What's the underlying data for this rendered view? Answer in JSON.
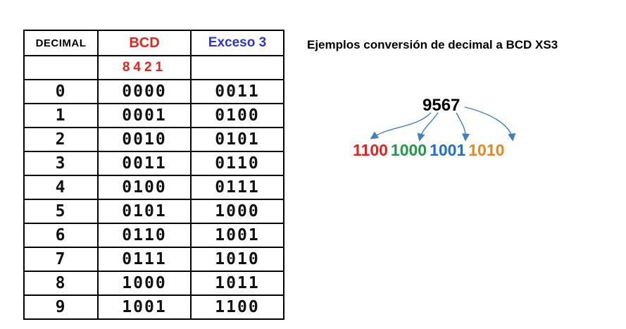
{
  "table": {
    "headers": {
      "decimal": "DECIMAL",
      "bcd": "BCD",
      "excess3": "Exceso 3"
    },
    "bcd_weights": "8421",
    "rows": [
      {
        "decimal": "0",
        "bcd": "0000",
        "excess3": "0011"
      },
      {
        "decimal": "1",
        "bcd": "0001",
        "excess3": "0100"
      },
      {
        "decimal": "2",
        "bcd": "0010",
        "excess3": "0101"
      },
      {
        "decimal": "3",
        "bcd": "0011",
        "excess3": "0110"
      },
      {
        "decimal": "4",
        "bcd": "0100",
        "excess3": "0111"
      },
      {
        "decimal": "5",
        "bcd": "0101",
        "excess3": "1000"
      },
      {
        "decimal": "6",
        "bcd": "0110",
        "excess3": "1001"
      },
      {
        "decimal": "7",
        "bcd": "0111",
        "excess3": "1010"
      },
      {
        "decimal": "8",
        "bcd": "1000",
        "excess3": "1011"
      },
      {
        "decimal": "9",
        "bcd": "1001",
        "excess3": "1100"
      }
    ]
  },
  "example": {
    "title": "Ejemplos conversión de decimal a BCD XS3",
    "number": "9567",
    "groups": [
      {
        "bits": "1100",
        "color": "#e8221b"
      },
      {
        "bits": "1000",
        "color": "#1f9a4a"
      },
      {
        "bits": "1001",
        "color": "#1e6fd0"
      },
      {
        "bits": "1010",
        "color": "#e8871e"
      }
    ],
    "arrow_color": "#3f7fc4"
  }
}
